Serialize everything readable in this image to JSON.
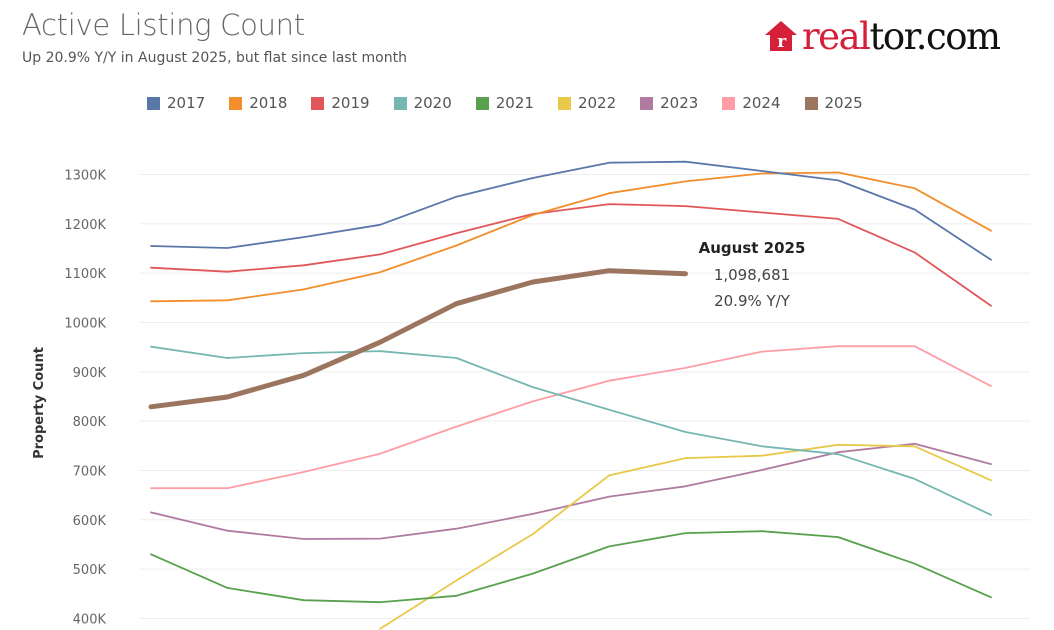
{
  "header": {
    "title": "Active Listing Count",
    "subtitle": "Up 20.9% Y/Y in August 2025, but flat since last month"
  },
  "logo": {
    "part1": "real",
    "part2": "tor.com",
    "brand_color": "#d6203a",
    "icon": "house-icon"
  },
  "chart_data": {
    "type": "line",
    "title": "Active Listing Count",
    "subtitle": "Up 20.9% Y/Y in August 2025, but flat since last month",
    "ylabel": "Property Count",
    "xlabel": "",
    "x": [
      1,
      2,
      3,
      4,
      5,
      6,
      7,
      8,
      9,
      10,
      11,
      12
    ],
    "yticks": [
      "400K",
      "500K",
      "600K",
      "700K",
      "800K",
      "900K",
      "1000K",
      "1100K",
      "1200K",
      "1300K"
    ],
    "ytick_values": [
      400,
      500,
      600,
      700,
      800,
      900,
      1000,
      1100,
      1200,
      1300
    ],
    "ylim": [
      375,
      1370
    ],
    "y_units": "thousands",
    "grid": "horizontal",
    "legend_position": "top",
    "series": [
      {
        "name": "2017",
        "color": "#5a77aa",
        "values": [
          1155,
          1151,
          1173,
          1198,
          1255,
          1293,
          1324,
          1326,
          1307,
          1288,
          1229,
          1127
        ]
      },
      {
        "name": "2018",
        "color": "#f28e2b",
        "values": [
          1043,
          1045,
          1067,
          1102,
          1156,
          1218,
          1262,
          1286,
          1302,
          1304,
          1272,
          1186
        ]
      },
      {
        "name": "2019",
        "color": "#e15759",
        "values": [
          1111,
          1103,
          1116,
          1138,
          1181,
          1220,
          1240,
          1236,
          1223,
          1210,
          1142,
          1034
        ]
      },
      {
        "name": "2020",
        "color": "#76b7b2",
        "values": [
          951,
          928,
          938,
          942,
          928,
          869,
          823,
          778,
          749,
          733,
          683,
          610
        ]
      },
      {
        "name": "2021",
        "color": "#59a14f",
        "values": [
          530,
          462,
          437,
          433,
          446,
          491,
          546,
          573,
          577,
          565,
          511,
          443
        ]
      },
      {
        "name": "2022",
        "color": "#e8c94a",
        "values": [
          null,
          null,
          null,
          379,
          477,
          571,
          690,
          725,
          730,
          752,
          749,
          680
        ]
      },
      {
        "name": "2023",
        "color": "#b07aa1",
        "values": [
          615,
          578,
          561,
          562,
          582,
          612,
          647,
          668,
          701,
          737,
          754,
          713
        ]
      },
      {
        "name": "2024",
        "color": "#ff9da7",
        "values": [
          664,
          664,
          697,
          734,
          789,
          840,
          882,
          908,
          941,
          952,
          952,
          871
        ]
      },
      {
        "name": "2025",
        "color": "#9c755f",
        "values": [
          829,
          849,
          893,
          960,
          1038,
          1082,
          1105,
          1099,
          null,
          null,
          null,
          null
        ]
      }
    ],
    "annotation": {
      "title": "August 2025",
      "value": "1,098,681",
      "change": "20.9% Y/Y",
      "series": "2025",
      "x": 8
    }
  }
}
